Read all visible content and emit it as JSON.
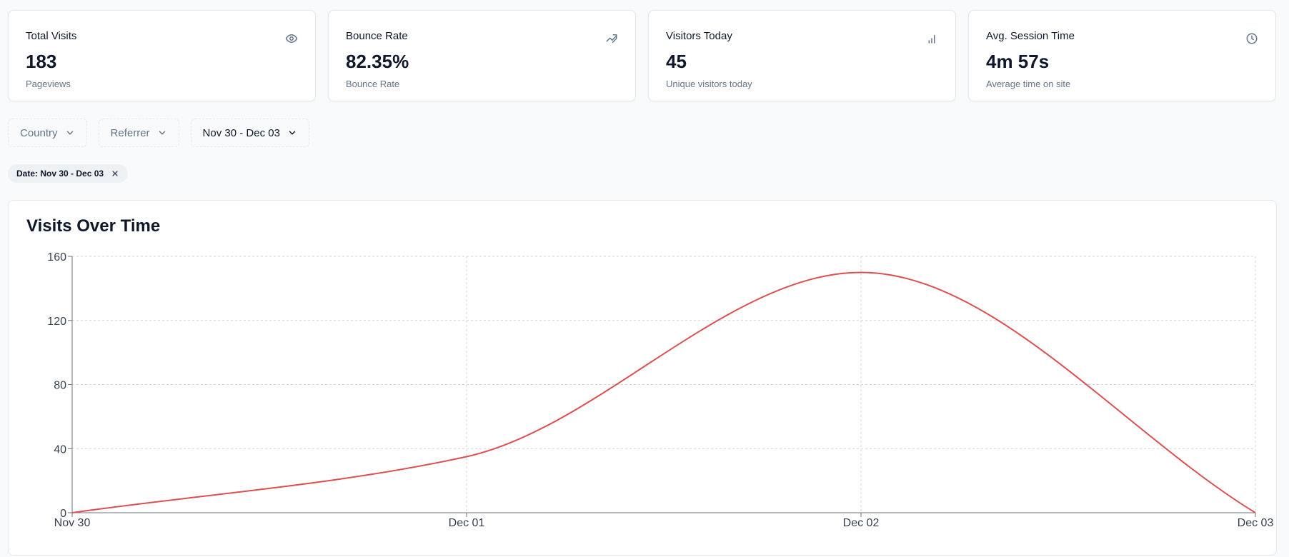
{
  "stats": [
    {
      "title": "Total Visits",
      "value": "183",
      "sub": "Pageviews",
      "icon": "eye-icon"
    },
    {
      "title": "Bounce Rate",
      "value": "82.35%",
      "sub": "Bounce Rate",
      "icon": "trend-arrow-icon"
    },
    {
      "title": "Visitors Today",
      "value": "45",
      "sub": "Unique visitors today",
      "icon": "bar-chart-icon"
    },
    {
      "title": "Avg. Session Time",
      "value": "4m 57s",
      "sub": "Average time on site",
      "icon": "clock-icon"
    }
  ],
  "filters": {
    "country": "Country",
    "referrer": "Referrer",
    "date_range": "Nov 30 - Dec 03"
  },
  "active_filter": {
    "label": "Date: Nov 30 - Dec 03"
  },
  "colors": {
    "line": "#dc4f4f",
    "grid": "#d1d5db"
  },
  "chart_data": {
    "type": "line",
    "title": "Visits Over Time",
    "x": [
      "Nov 30",
      "Dec 01",
      "Dec 02",
      "Dec 03"
    ],
    "series": [
      {
        "values": [
          0,
          35,
          150,
          0
        ]
      }
    ],
    "ylim": [
      0,
      160
    ],
    "yticks": [
      0,
      40,
      80,
      120,
      160
    ],
    "grid": true,
    "curve": "smooth"
  }
}
